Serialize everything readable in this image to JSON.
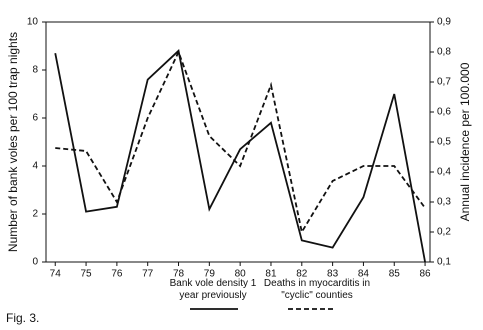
{
  "chart_data": {
    "type": "line",
    "caption": "Fig. 3.",
    "ylabel": "Number of bank voles per 100 trap nights",
    "y2label": "Annual incidence per 100.000",
    "x": [
      74,
      75,
      76,
      77,
      78,
      79,
      80,
      81,
      82,
      83,
      84,
      85,
      86
    ],
    "xlim": [
      73.7,
      86.16
    ],
    "xticks": [
      74,
      75,
      76,
      77,
      78,
      79,
      80,
      81,
      82,
      83,
      84,
      85,
      86
    ],
    "ylim": [
      0,
      10
    ],
    "yticks": [
      0,
      2,
      4,
      6,
      8,
      10
    ],
    "y2lim": [
      0.1,
      0.9
    ],
    "y2ticks": [
      {
        "value": 0.1,
        "label": "0,1"
      },
      {
        "value": 0.2,
        "label": "0,2"
      },
      {
        "value": 0.3,
        "label": "0,3"
      },
      {
        "value": 0.4,
        "label": "0,4"
      },
      {
        "value": 0.5,
        "label": "0,5"
      },
      {
        "value": 0.6,
        "label": "0,6"
      },
      {
        "value": 0.7,
        "label": "0,7"
      },
      {
        "value": 0.8,
        "label": "0,8"
      },
      {
        "value": 0.9,
        "label": "0,9"
      }
    ],
    "grid": false,
    "series": [
      {
        "name": "Bank vole density 1 year previously",
        "color": "#111111",
        "linestyle": "solid",
        "values": [
          8.7,
          2.1,
          2.3,
          7.6,
          8.8,
          2.2,
          4.7,
          5.8,
          0.9,
          0.6,
          2.7,
          7.0,
          0.0
        ]
      },
      {
        "name": "Deaths in myocarditis in \"cyclic\" counties",
        "color": "#111111",
        "linestyle": "dashed",
        "axis": "y2",
        "values": [
          0.48,
          0.47,
          0.3,
          0.58,
          0.8,
          0.52,
          0.42,
          0.69,
          0.2,
          0.37,
          0.42,
          0.42,
          0.28
        ]
      }
    ]
  }
}
